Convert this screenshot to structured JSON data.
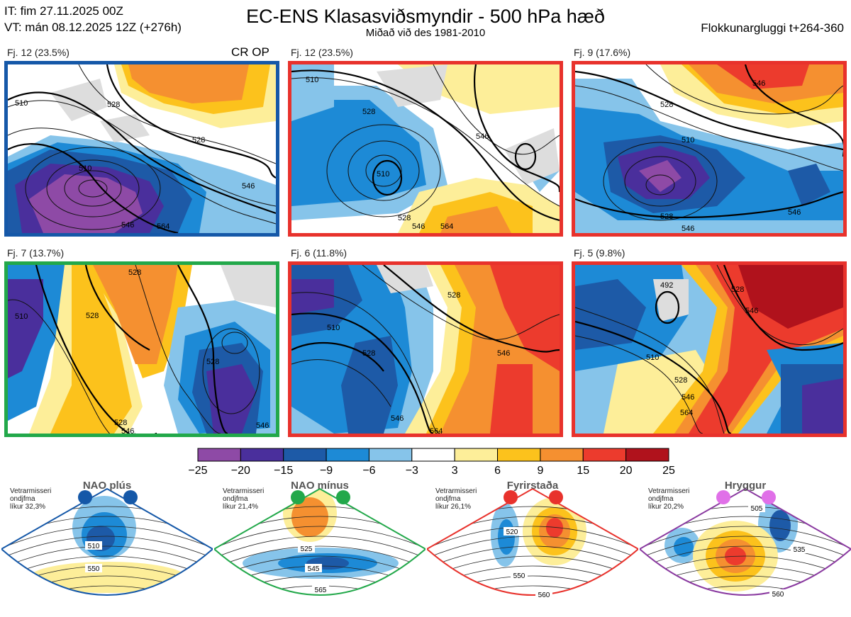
{
  "header": {
    "init_time": "IT: fim 27.11.2025 00Z",
    "valid_time": "VT: mán 08.12.2025 12Z  (+276h)",
    "title": "EC-ENS Klasasviðsmyndir - 500 hPa hæð",
    "subtitle": "Miðað við des 1981-2010",
    "window": "Flokkunargluggi t+264-360"
  },
  "panels": [
    {
      "label": "Fj. 12 (23.5%)",
      "tag": "CR OP",
      "regime": "NAO plús",
      "border": "#1558a8",
      "contours": [
        "510",
        "528",
        "546",
        "528",
        "510",
        "546",
        "564"
      ]
    },
    {
      "label": "Fj. 12 (23.5%)",
      "tag": "",
      "regime": "Fyrirstaða",
      "border": "#e8322c",
      "contours": [
        "510",
        "528",
        "546",
        "528",
        "546",
        "564",
        "510"
      ]
    },
    {
      "label": "Fj. 9 (17.6%)",
      "tag": "",
      "regime": "Fyrirstaða",
      "border": "#e8322c",
      "contours": [
        "546",
        "528",
        "510",
        "528",
        "546",
        "546"
      ]
    },
    {
      "label": "Fj. 7 (13.7%)",
      "tag": "",
      "regime": "NAO mínus",
      "border": "#22a84a",
      "contours": [
        "528",
        "528",
        "510",
        "528",
        "528",
        "546",
        "546"
      ]
    },
    {
      "label": "Fj. 6 (11.8%)",
      "tag": "",
      "regime": "Fyrirstaða",
      "border": "#e8322c",
      "contours": [
        "510",
        "528",
        "528",
        "546",
        "546",
        "564"
      ]
    },
    {
      "label": "Fj. 5 (9.8%)",
      "tag": "",
      "regime": "Fyrirstaða",
      "border": "#e8322c",
      "contours": [
        "492",
        "528",
        "546",
        "510",
        "528",
        "546",
        "564"
      ]
    }
  ],
  "colorbar": {
    "ticks": [
      "−25",
      "−20",
      "−15",
      "−9",
      "−6",
      "−3",
      "3",
      "6",
      "9",
      "15",
      "20",
      "25"
    ],
    "colors": [
      "#8e4aa6",
      "#4a2f9c",
      "#1d5aa7",
      "#1d8ad6",
      "#86c4ea",
      "#ffffff",
      "#fdee99",
      "#fcc21c",
      "#f59030",
      "#ec3b2d",
      "#b0121c"
    ]
  },
  "regimes": [
    {
      "name": "NAO plús",
      "note": [
        "Vetrarmisseri",
        "ondjfma",
        "líkur 32,3%"
      ],
      "color": "#1558a8",
      "dots": "#1558a8",
      "contours": [
        "510",
        "550"
      ]
    },
    {
      "name": "NAO mínus",
      "note": [
        "Vetrarmisseri",
        "ondjfma",
        "líkur 21,4%"
      ],
      "color": "#22a84a",
      "dots": "#22a84a",
      "contours": [
        "525",
        "545",
        "565"
      ]
    },
    {
      "name": "Fyrirstaða",
      "note": [
        "Vetrarmisseri",
        "ondjfma",
        "líkur 26,1%"
      ],
      "color": "#e8322c",
      "dots": "#e8322c",
      "contours": [
        "520",
        "550",
        "560"
      ]
    },
    {
      "name": "Hryggur",
      "note": [
        "Vetrarmisseri",
        "ondjfma",
        "líkur 20,2%"
      ],
      "color": "#8a3aa0",
      "dots": "#e070e8",
      "contours": [
        "505",
        "535",
        "560"
      ]
    }
  ]
}
